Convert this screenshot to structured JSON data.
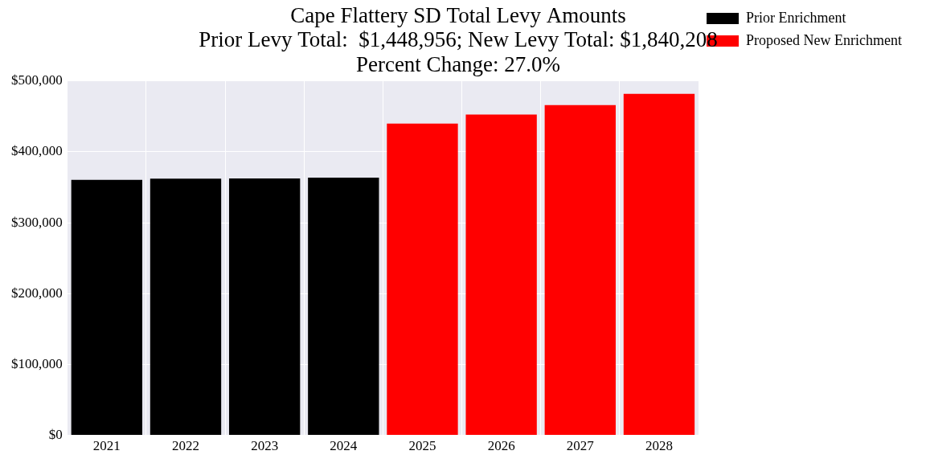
{
  "chart_data": {
    "type": "bar",
    "title": [
      "Cape Flattery SD Total Levy Amounts",
      "Prior Levy Total:  $1,448,956; New Levy Total: $1,840,208",
      "Percent Change: 27.0%"
    ],
    "categories": [
      "2021",
      "2022",
      "2023",
      "2024",
      "2025",
      "2026",
      "2027",
      "2028"
    ],
    "series": [
      {
        "name": "Prior Enrichment",
        "color": "#000000",
        "values": [
          360500,
          362300,
          362500,
          363656,
          null,
          null,
          null,
          null
        ]
      },
      {
        "name": "Proposed New Enrichment",
        "color": "#ff0000",
        "values": [
          null,
          null,
          null,
          null,
          440000,
          452500,
          466000,
          481708
        ]
      }
    ],
    "ylim": [
      0,
      500000
    ],
    "yticks": [
      {
        "value": 0,
        "label": "$0"
      },
      {
        "value": 100000,
        "label": "$100,000"
      },
      {
        "value": 200000,
        "label": "$200,000"
      },
      {
        "value": 300000,
        "label": "$300,000"
      },
      {
        "value": 400000,
        "label": "$400,000"
      },
      {
        "value": 500000,
        "label": "$500,000"
      }
    ],
    "grid": true,
    "legend": "right"
  }
}
